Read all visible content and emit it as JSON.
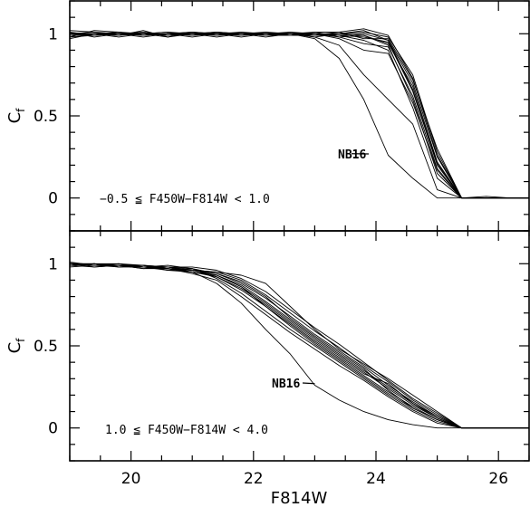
{
  "chart_data": [
    {
      "type": "line",
      "title": "",
      "xlabel": "F814W",
      "ylabel_main": "C",
      "ylabel_sub": "f",
      "xlim": [
        19,
        26.5
      ],
      "ylim": [
        -0.2,
        1.2
      ],
      "x_ticks": [
        20,
        22,
        24,
        26
      ],
      "y_ticks": [
        0,
        0.5,
        1
      ],
      "y_tick_labels": [
        "0",
        "0.5",
        "1"
      ],
      "annotation": "NB16",
      "annotation_point": [
        23.6,
        0.27
      ],
      "color_cut_label": "−0.5 ≦ F450W−F814W < 1.0",
      "x": [
        19.0,
        19.4,
        19.8,
        20.2,
        20.6,
        21.0,
        21.4,
        21.8,
        22.2,
        22.6,
        23.0,
        23.4,
        23.8,
        24.2,
        24.6,
        25.0,
        25.4,
        25.8,
        26.2,
        26.5
      ],
      "series": [
        {
          "values": [
            0.98,
            0.99,
            1.0,
            0.99,
            1.0,
            1.01,
            0.99,
            1.0,
            0.98,
            1.0,
            1.0,
            0.99,
            0.98,
            0.95,
            0.65,
            0.2,
            0.0,
            0.0,
            0.0,
            0.0
          ]
        },
        {
          "values": [
            1.0,
            1.01,
            0.99,
            1.01,
            0.99,
            1.0,
            1.01,
            0.99,
            1.0,
            1.01,
            0.99,
            1.0,
            1.02,
            0.96,
            0.7,
            0.25,
            0.0,
            0.0,
            0.0,
            0.0
          ]
        },
        {
          "values": [
            0.99,
            1.0,
            1.01,
            1.0,
            1.01,
            0.99,
            1.0,
            1.01,
            0.99,
            0.99,
            1.01,
            0.98,
            0.99,
            0.93,
            0.6,
            0.15,
            0.0,
            0.0,
            0.0,
            0.0
          ]
        },
        {
          "values": [
            1.01,
            0.98,
            1.0,
            0.99,
            1.0,
            1.0,
            0.99,
            1.0,
            1.01,
            1.0,
            0.99,
            1.01,
            0.97,
            0.97,
            0.72,
            0.3,
            0.0,
            0.01,
            0.0,
            0.0
          ]
        },
        {
          "values": [
            0.97,
            1.0,
            0.99,
            1.02,
            0.98,
            1.01,
            1.0,
            0.98,
            1.0,
            0.99,
            1.0,
            0.99,
            0.96,
            0.9,
            0.55,
            0.12,
            0.0,
            0.0,
            0.0,
            0.0
          ]
        },
        {
          "values": [
            1.02,
            1.01,
            1.0,
            0.98,
            1.0,
            0.99,
            1.01,
            1.0,
            0.99,
            1.0,
            0.98,
            1.0,
            1.01,
            0.98,
            0.75,
            0.28,
            0.0,
            0.0,
            0.0,
            0.0
          ]
        },
        {
          "values": [
            0.99,
            0.99,
            1.0,
            1.0,
            0.99,
            1.0,
            0.99,
            1.01,
            1.0,
            1.0,
            1.0,
            0.98,
            0.94,
            0.92,
            0.62,
            0.18,
            0.0,
            0.0,
            0.0,
            0.0
          ]
        },
        {
          "values": [
            1.0,
            1.0,
            0.98,
            1.0,
            1.01,
            1.0,
            1.0,
            0.99,
            1.01,
            0.99,
            1.0,
            1.0,
            0.99,
            0.94,
            0.68,
            0.22,
            0.0,
            0.0,
            0.0,
            0.0
          ]
        },
        {
          "values": [
            0.98,
            1.02,
            1.01,
            0.99,
            1.0,
            0.98,
            1.0,
            1.0,
            0.99,
            1.01,
            1.0,
            0.97,
            0.9,
            0.88,
            0.58,
            0.17,
            0.0,
            0.0,
            0.0,
            0.0
          ]
        },
        {
          "values": [
            1.01,
            0.99,
            1.0,
            1.01,
            0.99,
            1.0,
            0.98,
            1.0,
            1.0,
            1.0,
            1.01,
            1.01,
            1.03,
            0.99,
            0.73,
            0.26,
            0.0,
            0.0,
            0.0,
            0.0
          ]
        },
        {
          "values": [
            1.0,
            1.0,
            1.0,
            1.0,
            1.0,
            1.01,
            1.0,
            0.99,
            1.0,
            0.99,
            0.99,
            0.99,
            1.0,
            0.96,
            0.66,
            0.21,
            0.0,
            0.0,
            0.0,
            0.0
          ]
        },
        {
          "values": [
            0.99,
            1.0,
            0.99,
            1.0,
            0.98,
            1.0,
            1.01,
            1.0,
            0.99,
            1.0,
            0.98,
            0.93,
            0.75,
            0.6,
            0.45,
            0.05,
            0.0,
            0.0,
            0.0,
            0.0
          ]
        },
        {
          "values": [
            1.0,
            0.99,
            1.01,
            0.99,
            1.0,
            0.99,
            1.0,
            1.0,
            1.0,
            1.0,
            0.97,
            0.85,
            0.6,
            0.26,
            0.12,
            0.0,
            0.0,
            0.0,
            0.0,
            0.0
          ]
        }
      ]
    },
    {
      "type": "line",
      "title": "",
      "xlabel": "F814W",
      "ylabel_main": "C",
      "ylabel_sub": "f",
      "xlim": [
        19,
        26.5
      ],
      "ylim": [
        -0.2,
        1.2
      ],
      "x_ticks": [
        20,
        22,
        24,
        26
      ],
      "x_tick_labels": [
        "20",
        "22",
        "24",
        "26"
      ],
      "y_ticks": [
        0,
        0.5,
        1
      ],
      "y_tick_labels": [
        "0",
        "0.5",
        "1"
      ],
      "annotation": "NB16",
      "annotation_point": [
        23.0,
        0.27
      ],
      "color_cut_label": "1.0 ≦ F450W−F814W < 4.0",
      "x": [
        19.0,
        19.4,
        19.8,
        20.2,
        20.6,
        21.0,
        21.4,
        21.8,
        22.2,
        22.6,
        23.0,
        23.4,
        23.8,
        24.2,
        24.6,
        25.0,
        25.4,
        25.8,
        26.2,
        26.5
      ],
      "series": [
        {
          "values": [
            1.0,
            0.99,
            0.99,
            0.98,
            0.98,
            0.96,
            0.93,
            0.86,
            0.76,
            0.65,
            0.54,
            0.44,
            0.34,
            0.24,
            0.14,
            0.06,
            0.0,
            0.0,
            0.0,
            0.0
          ]
        },
        {
          "values": [
            1.0,
            1.0,
            0.98,
            0.99,
            0.97,
            0.95,
            0.92,
            0.84,
            0.74,
            0.63,
            0.52,
            0.42,
            0.32,
            0.22,
            0.13,
            0.05,
            0.0,
            0.0,
            0.0,
            0.0
          ]
        },
        {
          "values": [
            0.99,
            1.0,
            0.99,
            0.97,
            0.98,
            0.97,
            0.94,
            0.88,
            0.79,
            0.68,
            0.57,
            0.47,
            0.37,
            0.26,
            0.16,
            0.07,
            0.0,
            0.0,
            0.0,
            0.0
          ]
        },
        {
          "values": [
            1.01,
            0.99,
            1.0,
            0.99,
            0.97,
            0.96,
            0.95,
            0.9,
            0.81,
            0.7,
            0.59,
            0.49,
            0.38,
            0.28,
            0.17,
            0.08,
            0.0,
            0.0,
            0.0,
            0.0
          ]
        },
        {
          "values": [
            0.99,
            0.98,
            0.99,
            0.98,
            0.99,
            0.97,
            0.91,
            0.82,
            0.71,
            0.6,
            0.5,
            0.4,
            0.3,
            0.2,
            0.11,
            0.04,
            0.0,
            0.0,
            0.0,
            0.0
          ]
        },
        {
          "values": [
            1.0,
            1.0,
            1.0,
            0.98,
            0.96,
            0.95,
            0.93,
            0.87,
            0.77,
            0.66,
            0.55,
            0.45,
            0.35,
            0.25,
            0.15,
            0.06,
            0.0,
            0.0,
            0.0,
            0.0
          ]
        },
        {
          "values": [
            0.98,
            0.99,
            0.98,
            0.99,
            0.98,
            0.98,
            0.96,
            0.91,
            0.83,
            0.72,
            0.61,
            0.51,
            0.4,
            0.29,
            0.18,
            0.09,
            0.0,
            0.0,
            0.0,
            0.0
          ]
        },
        {
          "values": [
            1.0,
            0.99,
            0.99,
            0.97,
            0.97,
            0.94,
            0.9,
            0.8,
            0.69,
            0.58,
            0.48,
            0.38,
            0.29,
            0.19,
            0.1,
            0.03,
            0.0,
            0.0,
            0.0,
            0.0
          ]
        },
        {
          "values": [
            0.99,
            1.0,
            0.98,
            0.98,
            0.98,
            0.96,
            0.94,
            0.89,
            0.8,
            0.67,
            0.56,
            0.46,
            0.36,
            0.23,
            0.12,
            0.05,
            0.0,
            0.0,
            0.0,
            0.0
          ]
        },
        {
          "values": [
            1.0,
            0.98,
            0.99,
            0.99,
            0.96,
            0.97,
            0.92,
            0.85,
            0.75,
            0.64,
            0.53,
            0.43,
            0.33,
            0.27,
            0.15,
            0.07,
            0.0,
            0.0,
            0.0,
            0.0
          ]
        },
        {
          "values": [
            1.0,
            0.99,
            1.0,
            0.98,
            0.97,
            0.96,
            0.95,
            0.93,
            0.88,
            0.74,
            0.6,
            0.48,
            0.39,
            0.3,
            0.2,
            0.1,
            0.0,
            0.0,
            0.0,
            0.0
          ]
        },
        {
          "values": [
            0.99,
            1.0,
            0.99,
            0.99,
            0.98,
            0.95,
            0.93,
            0.86,
            0.74,
            0.62,
            0.51,
            0.41,
            0.31,
            0.21,
            0.12,
            0.05,
            0.0,
            0.0,
            0.0,
            0.0
          ]
        },
        {
          "values": [
            1.0,
            0.99,
            0.99,
            0.98,
            0.97,
            0.95,
            0.88,
            0.76,
            0.6,
            0.45,
            0.26,
            0.17,
            0.1,
            0.05,
            0.02,
            0.0,
            0.0,
            0.0,
            0.0,
            0.0
          ]
        }
      ]
    }
  ]
}
